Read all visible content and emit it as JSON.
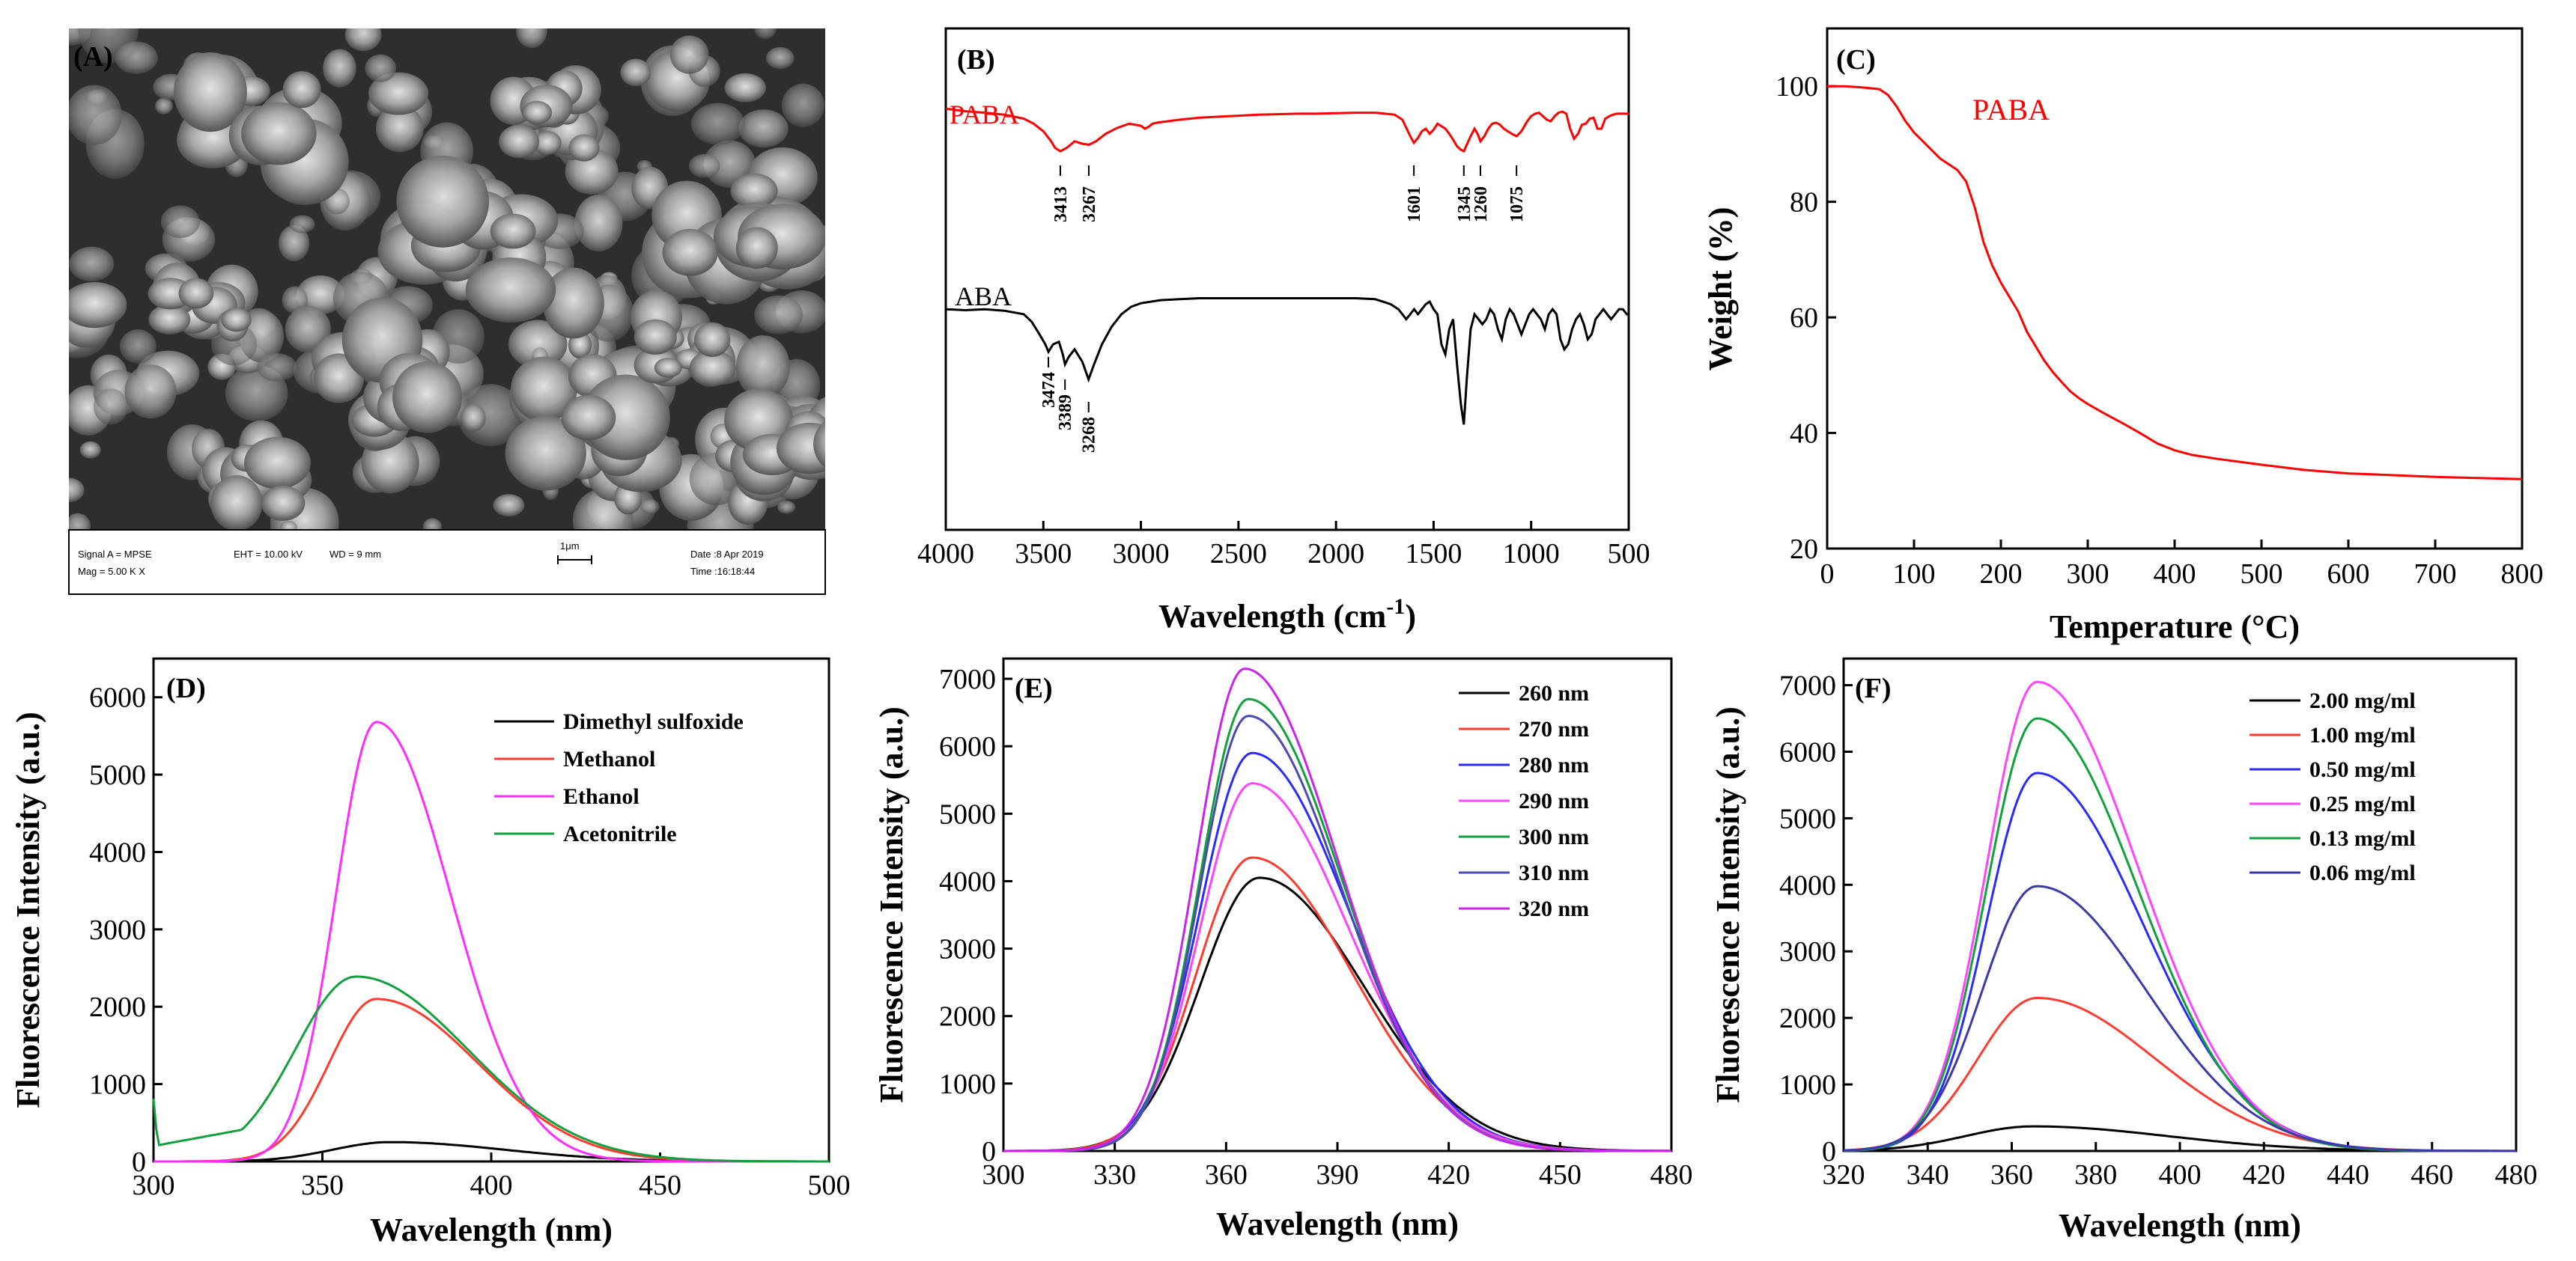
{
  "chart_data": [
    {
      "panel": "A",
      "type": "image",
      "label": "(A)",
      "info_bar": {
        "signal": "Signal A = MPSE",
        "mag": "Mag =   5.00 K X",
        "eht": "EHT = 10.00 kV",
        "wd": "WD =   9 mm",
        "scale": "1μm",
        "date": "Date :8 Apr 2019",
        "time": "Time :16:18:44"
      }
    },
    {
      "panel": "B",
      "type": "line",
      "label": "(B)",
      "xlabel": "Wavelength (cm",
      "xlabel_sup": "-1",
      "xlabel_end": ")",
      "xlim": [
        4000,
        500
      ],
      "xticks": [
        4000,
        3500,
        3000,
        2500,
        2000,
        1500,
        1000,
        500
      ],
      "series": [
        {
          "name": "PABA",
          "color": "#ff0000",
          "x": [
            4000,
            3900,
            3800,
            3700,
            3600,
            3550,
            3500,
            3460,
            3440,
            3413,
            3380,
            3340,
            3300,
            3267,
            3230,
            3180,
            3120,
            3060,
            3000,
            2980,
            2960,
            2940,
            2920,
            2880,
            2800,
            2700,
            2600,
            2500,
            2400,
            2300,
            2200,
            2100,
            2000,
            1900,
            1800,
            1750,
            1700,
            1660,
            1640,
            1620,
            1601,
            1580,
            1560,
            1540,
            1520,
            1500,
            1480,
            1460,
            1440,
            1420,
            1400,
            1380,
            1360,
            1345,
            1330,
            1310,
            1290,
            1275,
            1260,
            1240,
            1220,
            1200,
            1180,
            1160,
            1140,
            1120,
            1100,
            1075,
            1050,
            1020,
            1000,
            980,
            960,
            940,
            920,
            900,
            880,
            860,
            840,
            820,
            800,
            780,
            760,
            740,
            720,
            700,
            680,
            660,
            640,
            620,
            600,
            580,
            560,
            540,
            520,
            500
          ],
          "y": [
            0.84,
            0.835,
            0.832,
            0.828,
            0.82,
            0.81,
            0.795,
            0.775,
            0.762,
            0.755,
            0.762,
            0.775,
            0.77,
            0.768,
            0.775,
            0.79,
            0.802,
            0.81,
            0.806,
            0.8,
            0.804,
            0.81,
            0.812,
            0.814,
            0.818,
            0.822,
            0.824,
            0.826,
            0.828,
            0.829,
            0.83,
            0.83,
            0.831,
            0.832,
            0.832,
            0.83,
            0.828,
            0.818,
            0.802,
            0.785,
            0.772,
            0.782,
            0.795,
            0.8,
            0.79,
            0.798,
            0.81,
            0.805,
            0.8,
            0.79,
            0.778,
            0.765,
            0.758,
            0.755,
            0.768,
            0.785,
            0.8,
            0.79,
            0.775,
            0.785,
            0.8,
            0.81,
            0.812,
            0.808,
            0.8,
            0.795,
            0.79,
            0.785,
            0.795,
            0.815,
            0.825,
            0.83,
            0.832,
            0.825,
            0.818,
            0.815,
            0.825,
            0.832,
            0.834,
            0.83,
            0.8,
            0.78,
            0.79,
            0.808,
            0.81,
            0.82,
            0.822,
            0.8,
            0.8,
            0.82,
            0.825,
            0.828,
            0.83,
            0.83,
            0.83,
            0.83
          ]
        },
        {
          "name": "ABA",
          "color": "#000000",
          "x": [
            4000,
            3900,
            3800,
            3700,
            3600,
            3560,
            3520,
            3490,
            3474,
            3450,
            3420,
            3400,
            3389,
            3370,
            3340,
            3300,
            3268,
            3240,
            3200,
            3150,
            3100,
            3050,
            3000,
            2950,
            2900,
            2800,
            2700,
            2600,
            2500,
            2400,
            2300,
            2200,
            2100,
            2000,
            1900,
            1800,
            1760,
            1720,
            1680,
            1640,
            1620,
            1600,
            1580,
            1560,
            1540,
            1520,
            1500,
            1480,
            1460,
            1440,
            1420,
            1400,
            1380,
            1360,
            1345,
            1330,
            1310,
            1290,
            1270,
            1250,
            1230,
            1210,
            1190,
            1170,
            1150,
            1130,
            1110,
            1090,
            1070,
            1050,
            1030,
            1010,
            990,
            970,
            950,
            930,
            910,
            890,
            870,
            850,
            830,
            810,
            790,
            770,
            750,
            730,
            710,
            690,
            670,
            650,
            630,
            610,
            590,
            570,
            550,
            530,
            510,
            500
          ],
          "y": [
            0.44,
            0.438,
            0.44,
            0.437,
            0.43,
            0.415,
            0.39,
            0.37,
            0.355,
            0.37,
            0.375,
            0.35,
            0.33,
            0.345,
            0.36,
            0.335,
            0.3,
            0.33,
            0.37,
            0.405,
            0.43,
            0.445,
            0.452,
            0.455,
            0.458,
            0.46,
            0.462,
            0.462,
            0.462,
            0.462,
            0.462,
            0.462,
            0.462,
            0.462,
            0.462,
            0.46,
            0.455,
            0.45,
            0.44,
            0.42,
            0.43,
            0.44,
            0.43,
            0.44,
            0.45,
            0.455,
            0.44,
            0.43,
            0.37,
            0.35,
            0.4,
            0.42,
            0.33,
            0.25,
            0.21,
            0.3,
            0.4,
            0.43,
            0.42,
            0.41,
            0.42,
            0.44,
            0.43,
            0.4,
            0.38,
            0.42,
            0.44,
            0.43,
            0.41,
            0.39,
            0.41,
            0.43,
            0.44,
            0.43,
            0.42,
            0.4,
            0.43,
            0.44,
            0.43,
            0.38,
            0.36,
            0.37,
            0.4,
            0.42,
            0.43,
            0.41,
            0.38,
            0.39,
            0.42,
            0.43,
            0.44,
            0.43,
            0.42,
            0.43,
            0.44,
            0.44,
            0.43,
            0.43
          ]
        }
      ],
      "series_labels": [
        "PABA",
        "ABA"
      ],
      "peak_labels": {
        "PABA": [
          "3413",
          "3267",
          "1601",
          "1345",
          "1260",
          "1075"
        ],
        "ABA": [
          "3474",
          "3389",
          "3268"
        ]
      }
    },
    {
      "panel": "C",
      "type": "line",
      "label": "(C)",
      "xlabel": "Temperature (°C)",
      "ylabel": "Weight (%)",
      "xlim": [
        0,
        800
      ],
      "ylim": [
        20,
        110
      ],
      "xticks": [
        0,
        100,
        200,
        300,
        400,
        500,
        600,
        700,
        800
      ],
      "yticks": [
        20,
        40,
        60,
        80,
        100
      ],
      "annotation": "PABA",
      "series": [
        {
          "name": "PABA",
          "color": "#ff0000",
          "x": [
            0,
            20,
            40,
            60,
            70,
            80,
            90,
            100,
            110,
            120,
            130,
            140,
            150,
            160,
            170,
            180,
            190,
            200,
            210,
            220,
            230,
            240,
            250,
            260,
            270,
            280,
            290,
            300,
            320,
            340,
            360,
            380,
            400,
            420,
            450,
            500,
            550,
            600,
            650,
            700,
            750,
            800
          ],
          "y": [
            100,
            100,
            99.8,
            99.5,
            98.5,
            96.5,
            94,
            92,
            90.5,
            89,
            87.5,
            86.5,
            85.5,
            83.5,
            79,
            73,
            69,
            66,
            63.5,
            61,
            57.5,
            55,
            52.5,
            50.5,
            48.8,
            47.2,
            46,
            45,
            43.3,
            41.7,
            40,
            38.2,
            37,
            36.2,
            35.5,
            34.5,
            33.6,
            33,
            32.7,
            32.4,
            32.2,
            32
          ]
        }
      ]
    },
    {
      "panel": "D",
      "type": "line",
      "label": "(D)",
      "xlabel": "Wavelength (nm)",
      "ylabel": "Fluorescence Intensity (a.u.)",
      "xlim": [
        300,
        500
      ],
      "ylim": [
        0,
        6500
      ],
      "xticks": [
        300,
        350,
        400,
        450,
        500
      ],
      "yticks": [
        0,
        1000,
        2000,
        3000,
        4000,
        5000,
        6000
      ],
      "series": [
        {
          "name": "Dimethyl sulfoxide",
          "color": "#000000",
          "peak_x": 370,
          "peak_y": 250,
          "sl": 17,
          "sr": 34
        },
        {
          "name": "Methanol",
          "color": "#ff3b2f",
          "peak_x": 366,
          "peak_y": 2100,
          "sl": 14,
          "sr": 30
        },
        {
          "name": "Ethanol",
          "color": "#ff2bff",
          "peak_x": 366,
          "peak_y": 5680,
          "sl": 12,
          "sr": 22
        },
        {
          "name": "Acetonitrile",
          "color": "#12a03c",
          "peak_x": 360,
          "peak_y": 2390,
          "sl": 18,
          "sr": 33,
          "baseline_start": 800
        }
      ]
    },
    {
      "panel": "E",
      "type": "line",
      "label": "(E)",
      "xlabel": "Wavelength (nm)",
      "ylabel": "Fluorescence Intensity (a.u.)",
      "xlim": [
        300,
        480
      ],
      "ylim": [
        0,
        7300
      ],
      "xticks": [
        300,
        330,
        360,
        390,
        420,
        450,
        480
      ],
      "yticks": [
        0,
        1000,
        2000,
        3000,
        4000,
        5000,
        6000,
        7000
      ],
      "series": [
        {
          "name": "260 nm",
          "color": "#000000",
          "peak_x": 369,
          "peak_y": 4050,
          "sl": 16,
          "sr": 28
        },
        {
          "name": "270 nm",
          "color": "#ff3b2f",
          "peak_x": 367,
          "peak_y": 4350,
          "sl": 15,
          "sr": 27
        },
        {
          "name": "280 nm",
          "color": "#2a2aff",
          "peak_x": 367,
          "peak_y": 5900,
          "sl": 14,
          "sr": 26
        },
        {
          "name": "290 nm",
          "color": "#ff44ff",
          "peak_x": 367,
          "peak_y": 5450,
          "sl": 14,
          "sr": 26
        },
        {
          "name": "300 nm",
          "color": "#12a03c",
          "peak_x": 366,
          "peak_y": 6700,
          "sl": 13,
          "sr": 25
        },
        {
          "name": "310 nm",
          "color": "#4a4ab0",
          "peak_x": 366,
          "peak_y": 6450,
          "sl": 13,
          "sr": 25
        },
        {
          "name": "320 nm",
          "color": "#cc22ee",
          "peak_x": 365,
          "peak_y": 7150,
          "sl": 13,
          "sr": 25
        }
      ]
    },
    {
      "panel": "F",
      "type": "line",
      "label": "(F)",
      "xlabel": "Wavelength (nm)",
      "ylabel": "Fluorescence Intensity (a.u.)",
      "xlim": [
        320,
        480
      ],
      "ylim": [
        0,
        7400
      ],
      "xticks": [
        320,
        340,
        360,
        380,
        400,
        420,
        440,
        460,
        480
      ],
      "yticks": [
        0,
        1000,
        2000,
        3000,
        4000,
        5000,
        6000,
        7000
      ],
      "series": [
        {
          "name": "2.00 mg/ml",
          "color": "#000000",
          "peak_x": 365,
          "peak_y": 370,
          "sl": 16,
          "sr": 32
        },
        {
          "name": "1.00 mg/ml",
          "color": "#ff3b2f",
          "peak_x": 366,
          "peak_y": 2300,
          "sl": 14,
          "sr": 28
        },
        {
          "name": "0.50 mg/ml",
          "color": "#2a2aff",
          "peak_x": 366,
          "peak_y": 5680,
          "sl": 12,
          "sr": 25
        },
        {
          "name": "0.25 mg/ml",
          "color": "#ff44ff",
          "peak_x": 366,
          "peak_y": 7050,
          "sl": 12,
          "sr": 24
        },
        {
          "name": "0.13 mg/ml",
          "color": "#12a03c",
          "peak_x": 366,
          "peak_y": 6500,
          "sl": 12,
          "sr": 24
        },
        {
          "name": "0.06 mg/ml",
          "color": "#3a3aa8",
          "peak_x": 366,
          "peak_y": 3980,
          "sl": 13,
          "sr": 26
        }
      ]
    }
  ]
}
